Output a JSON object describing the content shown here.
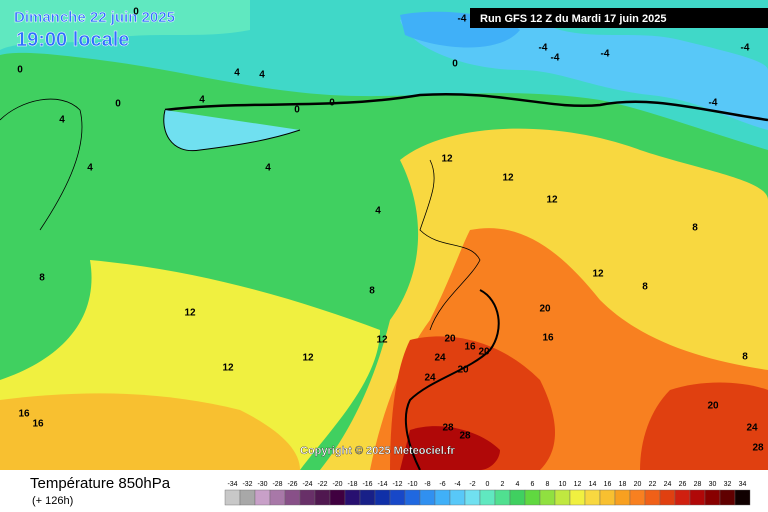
{
  "header": {
    "date": "Dimanche 22 juin 2025",
    "time": "19:00 locale",
    "run": "Run GFS 12 Z du Mardi 17 juin 2025"
  },
  "copyright": "Copyright © 2025 Meteociel.fr",
  "footer": {
    "title": "Température 850hPa",
    "lead": "(+ 126h)"
  },
  "legend": {
    "labels": [
      -34,
      -32,
      -30,
      -28,
      -26,
      -24,
      -22,
      -20,
      -18,
      -16,
      -14,
      -12,
      -10,
      -8,
      -6,
      -4,
      -2,
      0,
      2,
      4,
      6,
      8,
      10,
      12,
      14,
      16,
      18,
      20,
      22,
      24,
      26,
      28,
      30,
      32,
      34
    ],
    "colors": [
      "#c8c8c8",
      "#a8a8a8",
      "#c8a0c8",
      "#a878a8",
      "#885088",
      "#683068",
      "#501850",
      "#400040",
      "#281070",
      "#182088",
      "#1030a8",
      "#1848c8",
      "#2068e0",
      "#3090f0",
      "#40b0f8",
      "#58c8f8",
      "#70e0f0",
      "#60e8c0",
      "#50e090",
      "#40d060",
      "#60d840",
      "#90e040",
      "#c0e840",
      "#f0f040",
      "#f8d840",
      "#f8c030",
      "#f8a020",
      "#f88020",
      "#f06018",
      "#e04010",
      "#d02010",
      "#b00808",
      "#880000",
      "#600000",
      "#100000"
    ]
  },
  "contour_labels": [
    -4,
    -4,
    -4,
    -4,
    -4,
    -4,
    0,
    0,
    0,
    0,
    0,
    0,
    4,
    4,
    4,
    4,
    4,
    4,
    4,
    8,
    8,
    8,
    8,
    8,
    12,
    12,
    12,
    12,
    12,
    12,
    12,
    12,
    16,
    16,
    16,
    16,
    20,
    20,
    20,
    20,
    20,
    24,
    24,
    24,
    28,
    28,
    28
  ]
}
